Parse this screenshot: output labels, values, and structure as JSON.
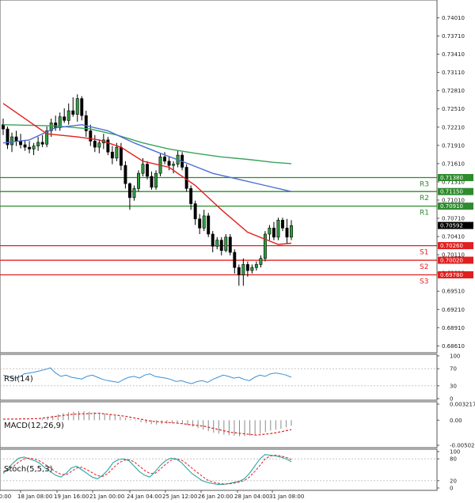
{
  "chart_data": {
    "type": "candlestick",
    "main": {
      "y_ticks": [
        "0.74010",
        "0.73710",
        "0.73410",
        "0.73110",
        "0.72810",
        "0.72510",
        "0.72210",
        "0.71910",
        "0.71610",
        "0.71310",
        "0.71010",
        "0.70710",
        "0.70410",
        "0.70110",
        "0.69810",
        "0.69510",
        "0.69210",
        "0.68910",
        "0.68610"
      ],
      "ylim": [
        0.6855,
        0.7425
      ],
      "x_labels": [
        "00:00",
        "18 Jan 08:00",
        "19 Jan 16:00",
        "21 Jan 00:00",
        "24 Jan 04:00",
        "25 Jan 12:00",
        "26 Jan 20:00",
        "28 Jan 04:00",
        "31 Jan 08:00"
      ],
      "candles": [
        [
          0.7225,
          0.7235,
          0.7208,
          0.7218
        ],
        [
          0.7218,
          0.7222,
          0.7185,
          0.7192
        ],
        [
          0.7192,
          0.7212,
          0.718,
          0.7205
        ],
        [
          0.7205,
          0.7215,
          0.719,
          0.7198
        ],
        [
          0.7198,
          0.721,
          0.7186,
          0.7192
        ],
        [
          0.7192,
          0.72,
          0.7182,
          0.7188
        ],
        [
          0.7188,
          0.7198,
          0.7178,
          0.7185
        ],
        [
          0.7185,
          0.7195,
          0.7175,
          0.719
        ],
        [
          0.719,
          0.7205,
          0.7182,
          0.7196
        ],
        [
          0.7196,
          0.7208,
          0.7188,
          0.7193
        ],
        [
          0.7193,
          0.7222,
          0.7188,
          0.7215
        ],
        [
          0.7215,
          0.7235,
          0.7205,
          0.7228
        ],
        [
          0.7228,
          0.724,
          0.7215,
          0.722
        ],
        [
          0.722,
          0.7245,
          0.7215,
          0.7238
        ],
        [
          0.7238,
          0.7252,
          0.7228,
          0.7232
        ],
        [
          0.7232,
          0.726,
          0.7225,
          0.7248
        ],
        [
          0.7248,
          0.727,
          0.7238,
          0.7242
        ],
        [
          0.7242,
          0.7275,
          0.723,
          0.7268
        ],
        [
          0.7268,
          0.7272,
          0.7232,
          0.724
        ],
        [
          0.724,
          0.7248,
          0.7205,
          0.7215
        ],
        [
          0.7215,
          0.7225,
          0.719,
          0.7198
        ],
        [
          0.7198,
          0.7208,
          0.718,
          0.7188
        ],
        [
          0.7188,
          0.72,
          0.7178,
          0.7195
        ],
        [
          0.7195,
          0.721,
          0.7185,
          0.72
        ],
        [
          0.72,
          0.7205,
          0.7175,
          0.718
        ],
        [
          0.718,
          0.719,
          0.716,
          0.717
        ],
        [
          0.717,
          0.7195,
          0.7165,
          0.7188
        ],
        [
          0.7188,
          0.7195,
          0.715,
          0.7158
        ],
        [
          0.7158,
          0.7165,
          0.712,
          0.7128
        ],
        [
          0.7128,
          0.713,
          0.7085,
          0.7105
        ],
        [
          0.7105,
          0.7125,
          0.71,
          0.712
        ],
        [
          0.712,
          0.715,
          0.7115,
          0.7145
        ],
        [
          0.7145,
          0.717,
          0.714,
          0.716
        ],
        [
          0.716,
          0.7165,
          0.7135,
          0.714
        ],
        [
          0.714,
          0.7148,
          0.7118,
          0.7122
        ],
        [
          0.7122,
          0.715,
          0.7118,
          0.7145
        ],
        [
          0.7145,
          0.7178,
          0.714,
          0.7172
        ],
        [
          0.7172,
          0.718,
          0.716,
          0.7165
        ],
        [
          0.7165,
          0.7172,
          0.715,
          0.7158
        ],
        [
          0.7158,
          0.7165,
          0.7145,
          0.716
        ],
        [
          0.716,
          0.7182,
          0.7155,
          0.7175
        ],
        [
          0.7175,
          0.718,
          0.715,
          0.7155
        ],
        [
          0.7155,
          0.716,
          0.7115,
          0.712
        ],
        [
          0.712,
          0.7125,
          0.7085,
          0.7095
        ],
        [
          0.7095,
          0.71,
          0.706,
          0.707
        ],
        [
          0.707,
          0.7078,
          0.7045,
          0.7055
        ],
        [
          0.7055,
          0.7085,
          0.705,
          0.7075
        ],
        [
          0.7075,
          0.708,
          0.704,
          0.7045
        ],
        [
          0.7045,
          0.705,
          0.7015,
          0.7025
        ],
        [
          0.7025,
          0.704,
          0.702,
          0.7035
        ],
        [
          0.7035,
          0.704,
          0.701,
          0.7018
        ],
        [
          0.7018,
          0.7045,
          0.7015,
          0.704
        ],
        [
          0.704,
          0.7045,
          0.701,
          0.7015
        ],
        [
          0.7015,
          0.702,
          0.698,
          0.699
        ],
        [
          0.699,
          0.6995,
          0.696,
          0.6978
        ],
        [
          0.6978,
          0.7005,
          0.696,
          0.6995
        ],
        [
          0.6995,
          0.7,
          0.6975,
          0.6985
        ],
        [
          0.6985,
          0.6995,
          0.698,
          0.699
        ],
        [
          0.699,
          0.7,
          0.6985,
          0.6995
        ],
        [
          0.6995,
          0.701,
          0.699,
          0.7005
        ],
        [
          0.7005,
          0.705,
          0.7,
          0.7045
        ],
        [
          0.7045,
          0.706,
          0.7035,
          0.7055
        ],
        [
          0.7055,
          0.7065,
          0.7035,
          0.704
        ],
        [
          0.704,
          0.7072,
          0.7035,
          0.7068
        ],
        [
          0.7068,
          0.7072,
          0.705,
          0.7055
        ],
        [
          0.7055,
          0.707,
          0.703,
          0.704
        ],
        [
          0.704,
          0.7068,
          0.7035,
          0.7059
        ]
      ],
      "ma_red": [
        [
          0,
          0.726
        ],
        [
          10,
          0.721
        ],
        [
          17,
          0.7205
        ],
        [
          22,
          0.72
        ],
        [
          27,
          0.7188
        ],
        [
          32,
          0.7165
        ],
        [
          38,
          0.7155
        ],
        [
          44,
          0.7125
        ],
        [
          50,
          0.7085
        ],
        [
          56,
          0.7048
        ],
        [
          63,
          0.7028
        ],
        [
          66,
          0.703
        ]
      ],
      "ma_blue": [
        [
          0,
          0.7195
        ],
        [
          6,
          0.72
        ],
        [
          12,
          0.722
        ],
        [
          18,
          0.7225
        ],
        [
          24,
          0.7215
        ],
        [
          30,
          0.7195
        ],
        [
          36,
          0.7178
        ],
        [
          42,
          0.7162
        ],
        [
          48,
          0.7145
        ],
        [
          54,
          0.7135
        ],
        [
          60,
          0.7125
        ],
        [
          66,
          0.7115
        ]
      ],
      "ma_green": [
        [
          0,
          0.7225
        ],
        [
          12,
          0.7223
        ],
        [
          20,
          0.7218
        ],
        [
          26,
          0.7208
        ],
        [
          32,
          0.7195
        ],
        [
          38,
          0.7185
        ],
        [
          44,
          0.7178
        ],
        [
          50,
          0.7172
        ],
        [
          56,
          0.7168
        ],
        [
          62,
          0.7163
        ],
        [
          66,
          0.7161
        ]
      ],
      "levels": [
        {
          "name": "R3",
          "value": 0.7138,
          "tag": "0.71380",
          "color": "#2e8b2e"
        },
        {
          "name": "R2",
          "value": 0.7115,
          "tag": "0.71150",
          "color": "#2e8b2e"
        },
        {
          "name": "R1",
          "value": 0.7091,
          "tag": "0.70910",
          "color": "#2e8b2e"
        },
        {
          "name": "S1",
          "value": 0.7026,
          "tag": "0.70260",
          "color": "#e02020"
        },
        {
          "name": "S2",
          "value": 0.7002,
          "tag": "0.70020",
          "color": "#e02020"
        },
        {
          "name": "S3",
          "value": 0.6978,
          "tag": "0.69780",
          "color": "#e02020"
        }
      ],
      "current_price": {
        "value": 0.70592,
        "tag": "0.70592"
      }
    },
    "rsi": {
      "label": "RSI(14)",
      "ticks": [
        "100",
        "70",
        "30",
        "0"
      ],
      "ylim": [
        0,
        100
      ],
      "values": [
        55,
        52,
        48,
        50,
        58,
        60,
        62,
        65,
        68,
        72,
        60,
        52,
        55,
        50,
        48,
        46,
        52,
        55,
        50,
        45,
        42,
        40,
        38,
        45,
        50,
        52,
        48,
        55,
        58,
        52,
        50,
        48,
        45,
        40,
        42,
        38,
        35,
        40,
        42,
        38,
        45,
        50,
        55,
        52,
        48,
        50,
        45,
        42,
        50,
        55,
        52,
        58,
        60,
        58,
        55,
        50
      ],
      "levels": [
        70,
        30
      ]
    },
    "macd": {
      "label": "MACD(12,26,9)",
      "ticks": [
        "0.003217",
        "0.00",
        "-0.005021"
      ],
      "ylim": [
        -0.005021,
        0.003217
      ],
      "hist_start": 9,
      "hist": [
        0.0003,
        0.0006,
        0.0009,
        0.0012,
        0.0014,
        0.0016,
        0.0017,
        0.0018,
        0.0018,
        0.0017,
        0.0016,
        0.0015,
        0.0013,
        0.0011,
        0.0009,
        0.0007,
        0.0005,
        0.0002,
        -0.0001,
        -0.0004,
        -0.0006,
        -0.0008,
        -0.0009,
        -0.0008,
        -0.0007,
        -0.0006,
        -0.0006,
        -0.0007,
        -0.001,
        -0.0013,
        -0.0016,
        -0.0019,
        -0.0022,
        -0.0025,
        -0.0027,
        -0.0029,
        -0.003,
        -0.0031,
        -0.0032,
        -0.0032,
        -0.0031,
        -0.0029,
        -0.0027,
        -0.0024,
        -0.0021,
        -0.0019,
        -0.0017,
        -0.0014,
        -0.0011
      ],
      "signal": [
        [
          0,
          0.0002
        ],
        [
          8,
          0.0003
        ],
        [
          16,
          0.0012
        ],
        [
          22,
          0.0014
        ],
        [
          28,
          0.0008
        ],
        [
          34,
          -0.0002
        ],
        [
          40,
          -0.0006
        ],
        [
          46,
          -0.0012
        ],
        [
          52,
          -0.0024
        ],
        [
          58,
          -0.003
        ],
        [
          62,
          -0.0026
        ],
        [
          66,
          -0.0019
        ]
      ]
    },
    "stoch": {
      "label": "Stoch(5,5,3)",
      "ticks": [
        "100",
        "80",
        "20",
        "0"
      ],
      "ylim": [
        0,
        100
      ],
      "main": [
        40,
        55,
        70,
        82,
        85,
        80,
        75,
        68,
        55,
        45,
        35,
        30,
        40,
        55,
        60,
        50,
        40,
        30,
        25,
        35,
        50,
        70,
        78,
        80,
        75,
        60,
        45,
        35,
        30,
        45,
        62,
        75,
        82,
        80,
        70,
        55,
        40,
        30,
        20,
        15,
        12,
        10,
        10,
        12,
        15,
        18,
        25,
        40,
        60,
        80,
        92,
        90,
        88,
        85,
        80,
        72
      ],
      "signal": [
        45,
        50,
        60,
        72,
        80,
        82,
        80,
        74,
        65,
        55,
        45,
        38,
        36,
        45,
        55,
        57,
        50,
        42,
        34,
        32,
        40,
        55,
        68,
        76,
        78,
        72,
        60,
        48,
        40,
        40,
        52,
        65,
        76,
        80,
        77,
        67,
        55,
        43,
        32,
        22,
        16,
        13,
        11,
        11,
        13,
        16,
        20,
        30,
        45,
        62,
        80,
        88,
        90,
        88,
        84,
        78
      ],
      "levels": [
        80,
        20
      ]
    }
  }
}
